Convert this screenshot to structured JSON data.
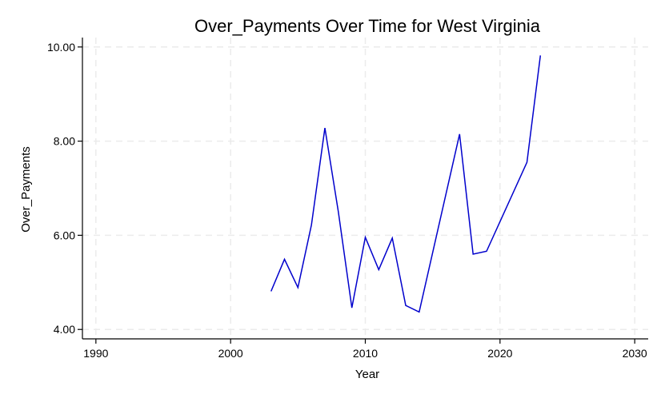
{
  "chart_data": {
    "type": "line",
    "title": "Over_Payments Over Time for West Virginia",
    "xlabel": "Year",
    "ylabel": "Over_Payments",
    "xlim": [
      1989,
      2031
    ],
    "ylim": [
      3.8,
      10.2
    ],
    "xticks": [
      1990,
      2000,
      2010,
      2020,
      2030
    ],
    "yticks": [
      4.0,
      6.0,
      8.0,
      10.0
    ],
    "ytick_labels": [
      "4.00",
      "6.00",
      "8.00",
      "10.00"
    ],
    "grid": true,
    "series": [
      {
        "color": "#0000cc",
        "x": [
          2003,
          2004,
          2005,
          2006,
          2007,
          2008,
          2009,
          2010,
          2011,
          2012,
          2013,
          2014,
          2017,
          2018,
          2019,
          2022,
          2023
        ],
        "y": [
          4.81,
          5.49,
          4.89,
          6.22,
          8.28,
          6.5,
          4.46,
          5.96,
          5.27,
          5.94,
          4.51,
          4.37,
          8.15,
          5.6,
          5.66,
          7.55,
          9.82
        ]
      }
    ]
  }
}
